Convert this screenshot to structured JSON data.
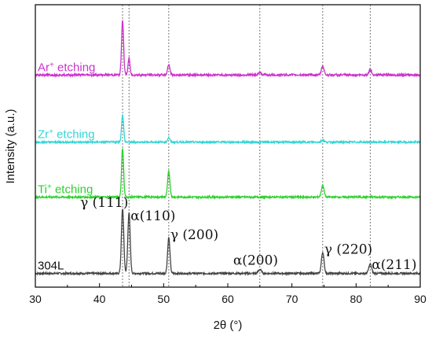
{
  "chart_data": {
    "type": "line",
    "xlabel": "2θ (°)",
    "ylabel": "Intensity (a.u.)",
    "xlim": [
      30,
      90
    ],
    "xticks": [
      "30",
      "40",
      "50",
      "60",
      "70",
      "80",
      "90"
    ],
    "grid": false,
    "reference_lines_x": [
      43.6,
      44.6,
      50.8,
      65.0,
      74.8,
      82.2
    ],
    "series": [
      {
        "name": "304L",
        "color": "#444444",
        "baseline": 0.0,
        "noise": 0.012,
        "peaks": [
          {
            "x": 43.6,
            "height": 0.85,
            "width": 0.18
          },
          {
            "x": 44.6,
            "height": 0.8,
            "width": 0.18
          },
          {
            "x": 50.8,
            "height": 0.47,
            "width": 0.18
          },
          {
            "x": 65.0,
            "height": 0.05,
            "width": 0.25
          },
          {
            "x": 74.8,
            "height": 0.28,
            "width": 0.2
          },
          {
            "x": 82.2,
            "height": 0.12,
            "width": 0.22
          }
        ]
      },
      {
        "name": "Ti",
        "label_sup": "+",
        "label_suffix": " etching",
        "color": "#2ed12e",
        "baseline": 1.0,
        "noise": 0.012,
        "peaks": [
          {
            "x": 43.6,
            "height": 0.64,
            "width": 0.16
          },
          {
            "x": 50.8,
            "height": 0.34,
            "width": 0.18
          },
          {
            "x": 74.8,
            "height": 0.16,
            "width": 0.2
          }
        ]
      },
      {
        "name": "Zr",
        "label_sup": "+",
        "label_suffix": " etching",
        "color": "#33d6d6",
        "baseline": 1.72,
        "noise": 0.012,
        "peaks": [
          {
            "x": 43.6,
            "height": 0.36,
            "width": 0.16
          },
          {
            "x": 50.8,
            "height": 0.06,
            "width": 0.18
          },
          {
            "x": 74.8,
            "height": 0.03,
            "width": 0.2
          }
        ]
      },
      {
        "name": "Ar",
        "label_sup": "+",
        "label_suffix": " etching",
        "color": "#cc33cc",
        "baseline": 2.6,
        "noise": 0.014,
        "peaks": [
          {
            "x": 43.6,
            "height": 0.72,
            "width": 0.16
          },
          {
            "x": 44.6,
            "height": 0.22,
            "width": 0.15
          },
          {
            "x": 50.8,
            "height": 0.14,
            "width": 0.18
          },
          {
            "x": 65.0,
            "height": 0.03,
            "width": 0.25
          },
          {
            "x": 74.8,
            "height": 0.12,
            "width": 0.2
          },
          {
            "x": 82.2,
            "height": 0.07,
            "width": 0.2
          }
        ]
      }
    ],
    "annotations": [
      {
        "text": "γ (111)",
        "x": 43.6
      },
      {
        "text": "α(110)",
        "x": 44.6
      },
      {
        "text": "γ (200)",
        "x": 50.8
      },
      {
        "text": "α(200)",
        "x": 65.0
      },
      {
        "text": "γ (220)",
        "x": 74.8
      },
      {
        "text": "α(211)",
        "x": 82.2
      }
    ]
  }
}
